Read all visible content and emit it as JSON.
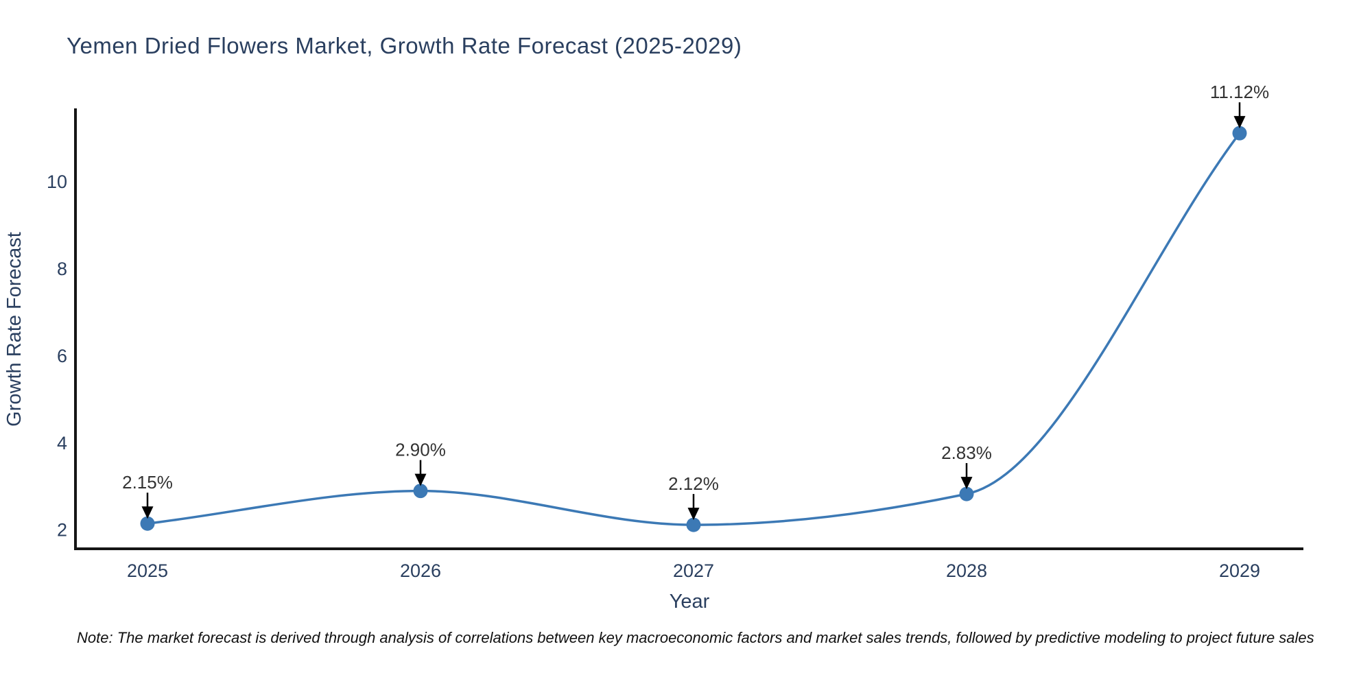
{
  "title": "Yemen Dried Flowers Market, Growth Rate Forecast (2025-2029)",
  "note": "Note: The market forecast is derived through analysis of correlations between key macroeconomic factors and market sales trends, followed by predictive modeling to project future sales",
  "chart_data": {
    "type": "line",
    "title": "Yemen Dried Flowers Market, Growth Rate Forecast (2025-2029)",
    "categories": [
      "2025",
      "2026",
      "2027",
      "2028",
      "2029"
    ],
    "values": [
      2.15,
      2.9,
      2.12,
      2.83,
      11.12
    ],
    "point_labels": [
      "2.15%",
      "2.90%",
      "2.12%",
      "2.83%",
      "11.12%"
    ],
    "xlabel": "Year",
    "ylabel": "Growth Rate Forecast",
    "yticks": [
      "2",
      "4",
      "6",
      "8",
      "10"
    ],
    "ytick_values": [
      2,
      4,
      6,
      8,
      10
    ],
    "ylim": [
      1.57,
      11.69
    ],
    "grid": false,
    "legend": "none",
    "line_color": "#3c79b5",
    "marker_color": "#3c79b5",
    "arrow_color": "#000000",
    "annotation_color": "#333333",
    "axis_color": "#151515",
    "label_color": "#2a3f5f"
  }
}
